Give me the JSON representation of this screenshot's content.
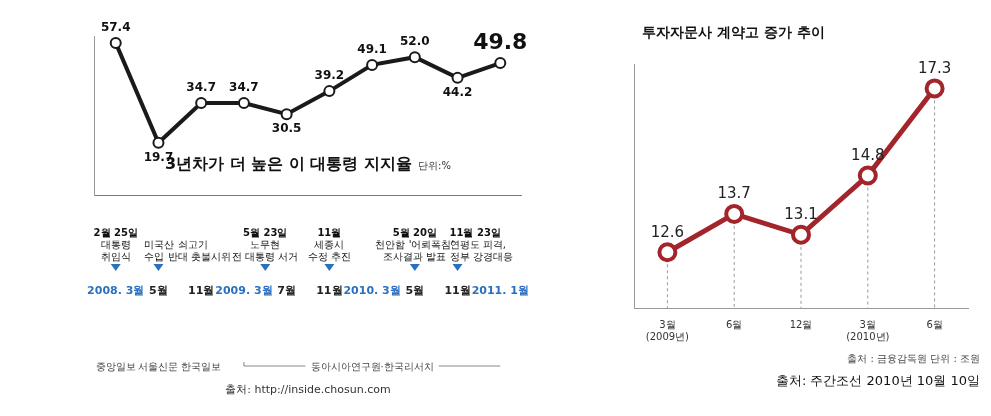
{
  "chart_data": [
    {
      "type": "line",
      "title": "3년차가 더 높은 이 대통령 지지율",
      "subtitle": "단위:%",
      "categories": [
        "2008. 3월",
        "5월",
        "11월",
        "2009. 3월",
        "7월",
        "11월",
        "2010. 3월",
        "5월",
        "11월",
        "2011. 1월"
      ],
      "values": [
        57.4,
        19.7,
        34.7,
        34.7,
        30.5,
        39.2,
        49.1,
        52.0,
        44.2,
        49.8
      ],
      "value_labels": [
        "57.4",
        "19.7",
        "34.7",
        "34.7",
        "30.5",
        "39.2",
        "49.1",
        "52.0",
        "44.2",
        "49.8"
      ],
      "color": "#1a1a1a",
      "marker": "circle",
      "line_style": "solid",
      "data_labels": true,
      "tick_labels": "x",
      "grid": false,
      "ylim": [
        0,
        60
      ],
      "annotations": [
        {
          "date": "2월 25일",
          "text": [
            "대통령",
            "취임식"
          ]
        },
        {
          "text": [
            "미국산 쇠고기",
            "수입 반대 촛불시위"
          ]
        },
        {
          "date": "5월 23일",
          "text": [
            "노무현",
            "전 대통령 서거"
          ]
        },
        {
          "date": "11월",
          "text": [
            "세종시",
            "수정 추진"
          ]
        },
        {
          "date": "5월 20일",
          "text": [
            "천안함 '어뢰폭침'",
            "조사결과 발표"
          ]
        },
        {
          "date": "11월 23일",
          "text": [
            "연평도 피격,",
            "정부 강경대응"
          ]
        }
      ],
      "poll_sources": [
        "중앙일보",
        "서울신문",
        "한국일보",
        "동아시아연구원·한국리서치"
      ],
      "source": "출처: http://inside.chosun.com"
    },
    {
      "type": "line",
      "title": "투자자문사 계약고 증가 추이",
      "categories": [
        "3월 (2009년)",
        "6월",
        "12월",
        "3월 (2010년)",
        "6월"
      ],
      "values": [
        12.6,
        13.7,
        13.1,
        14.8,
        17.3
      ],
      "color": "#a3252b",
      "marker": "circle",
      "line_style": "solid",
      "data_labels": true,
      "tick_labels": "x",
      "grid": false,
      "ylim": [
        11,
        18
      ],
      "note": "출처 : 금융감독원   단위 : 조원",
      "source": "출처: 주간조선 2010년 10월 10일"
    }
  ]
}
